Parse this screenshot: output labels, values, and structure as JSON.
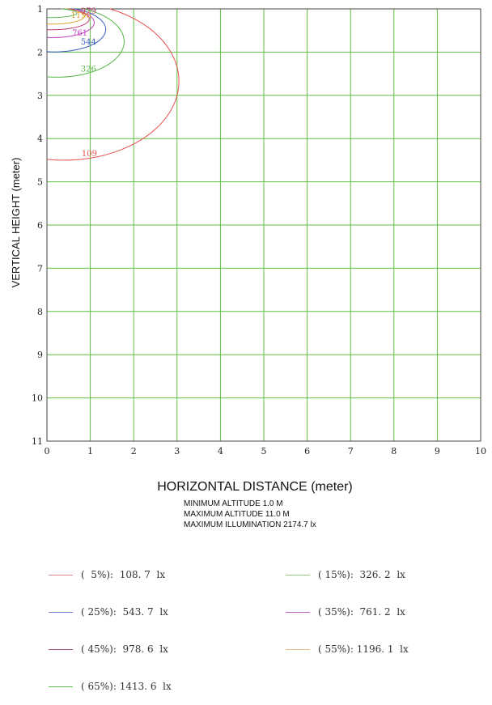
{
  "chart_data": {
    "type": "contour",
    "xlabel": "HORIZONTAL DISTANCE (meter)",
    "ylabel": "VERTICAL HEIGHT (meter)",
    "xlim": [
      0,
      10
    ],
    "ylim": [
      1,
      11
    ],
    "y_inverted": true,
    "x_ticks": [
      "0",
      "1",
      "2",
      "3",
      "4",
      "5",
      "6",
      "7",
      "8",
      "9",
      "10"
    ],
    "y_ticks": [
      "1",
      "2",
      "3",
      "4",
      "5",
      "6",
      "7",
      "8",
      "9",
      "10",
      "11"
    ],
    "grid": true,
    "grid_color": "#5fbf3f",
    "contours": [
      {
        "label": "109",
        "percent": 5,
        "value": 108.7,
        "color": "#e85050",
        "reach_x": 2.65,
        "bottom_y": 4.48
      },
      {
        "label": "326",
        "percent": 15,
        "value": 326.2,
        "color": "#59b84a",
        "reach_x": 1.55,
        "bottom_y": 2.57
      },
      {
        "label": "544",
        "percent": 25,
        "value": 543.7,
        "color": "#3a5cc4",
        "reach_x": 1.18,
        "bottom_y": 1.99
      },
      {
        "label": "761",
        "percent": 35,
        "value": 761.2,
        "color": "#c040c0",
        "reach_x": 0.95,
        "bottom_y": 1.66
      },
      {
        "label": "979",
        "percent": 45,
        "value": 978.6,
        "color": "#c03a70",
        "reach_x": 0.85,
        "bottom_y": 1.48
      },
      {
        "label": "1196",
        "percent": 55,
        "value": 1196.1,
        "color": "#e0a030",
        "reach_x": 0.75,
        "bottom_y": 1.35
      },
      {
        "label": "1414",
        "percent": 65,
        "value": 1413.6,
        "color": "#5cb85c",
        "reach_x": 0.6,
        "bottom_y": 1.2
      }
    ],
    "contour_label_positions": [
      {
        "text": "109",
        "x": 0.8,
        "y": 4.33
      },
      {
        "text": "326",
        "x": 0.78,
        "y": 2.38
      },
      {
        "text": "544",
        "x": 0.78,
        "y": 1.75
      },
      {
        "text": "761",
        "x": 0.58,
        "y": 1.54
      },
      {
        "text": "979",
        "x": 0.78,
        "y": 1.04
      },
      {
        "text": "1196",
        "x": 0.55,
        "y": 1.13
      }
    ]
  },
  "info": {
    "min_altitude": "MINIMUM  ALTITUDE  1.0 M",
    "max_altitude": "MAXIMUM  ALTITUDE  11.0 M",
    "max_illumination": "MAXIMUM  ILLUMINATION 2174.7 lx"
  },
  "legend": [
    {
      "text": "(  5%):  108. 7  lx",
      "color": "#e08888"
    },
    {
      "text": "( 15%):  326. 2  lx",
      "color": "#8ed07e"
    },
    {
      "text": "( 25%):  543. 7  lx",
      "color": "#6f7fd0"
    },
    {
      "text": "( 35%):  761. 2  lx",
      "color": "#c060c0"
    },
    {
      "text": "( 45%):  978. 6  lx",
      "color": "#a05080"
    },
    {
      "text": "( 55%): 1196. 1  lx",
      "color": "#e0c088"
    },
    {
      "text": "( 65%): 1413. 6  lx",
      "color": "#5cbf4c"
    }
  ]
}
